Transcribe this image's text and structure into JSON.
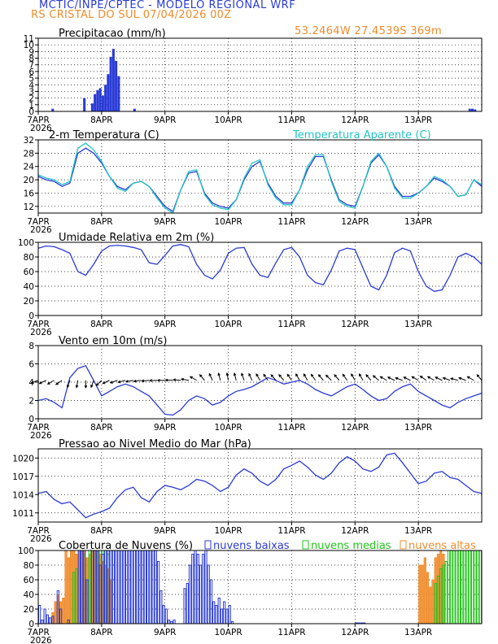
{
  "header": {
    "title": "MCTIC/INPE/CPTEC - MODELO REGIONAL WRF",
    "location": "RS CRISTAL DO SUL   07/04/2026 00Z",
    "coords": "53.2464W 27.4539S 369m"
  },
  "colors": {
    "blue": "#2a3bd6",
    "cyan": "#22c4c4",
    "green": "#22c41a",
    "orange": "#f08c2c",
    "black": "#000000"
  },
  "x_axis": {
    "labels": [
      "7APR",
      "8APR",
      "9APR",
      "10APR",
      "11APR",
      "12APR",
      "13APR"
    ],
    "year_label": "2026",
    "hours_total": 168
  },
  "chart_data": [
    {
      "type": "bar",
      "title": "Precipitacao (mm/h)",
      "ylim": [
        0,
        11
      ],
      "yticks": [
        "0",
        "1",
        "2",
        "3",
        "4",
        "5",
        "6",
        "7",
        "8",
        "9",
        "10",
        "11"
      ],
      "unit_hours": [
        5,
        17,
        20,
        21,
        22,
        23,
        24,
        25,
        26,
        27,
        28,
        29,
        30,
        36,
        163,
        164,
        165
      ],
      "values": [
        0.4,
        2.0,
        1.2,
        2.6,
        3.2,
        3.5,
        2.4,
        4.0,
        5.6,
        8.2,
        9.4,
        7.6,
        5.3,
        0.4,
        0.4,
        0.4,
        0.3
      ]
    },
    {
      "type": "line",
      "title": "2-m Temperatura (C)",
      "ylim": [
        10,
        32
      ],
      "yticks": [
        "12",
        "16",
        "20",
        "24",
        "28",
        "32"
      ],
      "series": [
        {
          "name": "",
          "x": [
            0,
            3,
            6,
            9,
            12,
            15,
            18,
            21,
            24,
            27,
            30,
            33,
            36,
            39,
            42,
            45,
            48,
            51,
            54,
            57,
            60,
            63,
            66,
            69,
            72,
            75,
            78,
            81,
            84,
            87,
            90,
            93,
            96,
            99,
            102,
            105,
            108,
            111,
            114,
            117,
            120,
            123,
            126,
            129,
            132,
            135,
            138,
            141,
            144,
            147,
            150,
            153,
            156,
            159,
            162,
            165,
            168
          ],
          "values": [
            21,
            20,
            19.5,
            18,
            19,
            28,
            29.5,
            28,
            25,
            21,
            18,
            17,
            19,
            19.5,
            18,
            15,
            12,
            10.5,
            17,
            22,
            22.5,
            16,
            13,
            12,
            11.5,
            14,
            20,
            24,
            25.5,
            19,
            15,
            13,
            13,
            17,
            23,
            27,
            27,
            20,
            14,
            12.5,
            12,
            18,
            25,
            27.5,
            24,
            18,
            15,
            15,
            16,
            18,
            20.5,
            19.5,
            18,
            15,
            15.5,
            20,
            18
          ]
        },
        {
          "name": "Temperatura Aparente (C)",
          "x": [
            0,
            3,
            6,
            9,
            12,
            15,
            18,
            21,
            24,
            27,
            30,
            33,
            36,
            39,
            42,
            45,
            48,
            51,
            54,
            57,
            60,
            63,
            66,
            69,
            72,
            75,
            78,
            81,
            84,
            87,
            90,
            93,
            96,
            99,
            102,
            105,
            108,
            111,
            114,
            117,
            120,
            123,
            126,
            129,
            132,
            135,
            138,
            141,
            144,
            147,
            150,
            153,
            156,
            159,
            162,
            165,
            168
          ],
          "values": [
            21.5,
            20.5,
            20,
            18.5,
            19.5,
            29.5,
            31,
            29,
            25.5,
            21,
            17.5,
            16.5,
            19,
            19.5,
            18,
            14.5,
            11.5,
            10,
            17,
            22.5,
            23,
            15.5,
            12.5,
            11.5,
            11,
            14,
            20.5,
            25,
            26,
            18.5,
            14.5,
            12.5,
            12.5,
            17,
            24,
            27.5,
            27.5,
            19.5,
            13.5,
            12,
            11.5,
            18,
            25.5,
            28,
            24,
            17.5,
            14.5,
            14.5,
            16,
            18,
            21,
            20,
            18,
            15,
            15.5,
            20,
            18.5
          ]
        }
      ]
    },
    {
      "type": "line",
      "title": "Umidade Relativa em 2m (%)",
      "ylim": [
        0,
        100
      ],
      "yticks": [
        "0",
        "20",
        "40",
        "60",
        "80",
        "100"
      ],
      "series": [
        {
          "name": "",
          "x": [
            0,
            3,
            6,
            9,
            12,
            15,
            18,
            21,
            24,
            27,
            30,
            33,
            36,
            39,
            42,
            45,
            48,
            51,
            54,
            57,
            60,
            63,
            66,
            69,
            72,
            75,
            78,
            81,
            84,
            87,
            90,
            93,
            96,
            99,
            102,
            105,
            108,
            111,
            114,
            117,
            120,
            123,
            126,
            129,
            132,
            135,
            138,
            141,
            144,
            147,
            150,
            153,
            156,
            159,
            162,
            165,
            168
          ],
          "values": [
            92,
            95,
            94,
            90,
            85,
            60,
            55,
            70,
            88,
            95,
            96,
            95,
            93,
            90,
            72,
            70,
            82,
            95,
            97,
            94,
            70,
            55,
            50,
            62,
            85,
            92,
            93,
            70,
            55,
            52,
            72,
            90,
            93,
            80,
            55,
            45,
            42,
            62,
            88,
            92,
            90,
            65,
            40,
            35,
            55,
            86,
            92,
            88,
            60,
            40,
            33,
            35,
            55,
            80,
            85,
            80,
            70
          ]
        }
      ]
    },
    {
      "type": "line",
      "title": "Vento em 10m (m/s)",
      "ylim": [
        0,
        8
      ],
      "yticks": [
        "0",
        "2",
        "4",
        "6",
        "8"
      ],
      "series": [
        {
          "name": "",
          "x": [
            0,
            3,
            6,
            9,
            12,
            15,
            18,
            21,
            24,
            27,
            30,
            33,
            36,
            39,
            42,
            45,
            48,
            51,
            54,
            57,
            60,
            63,
            66,
            69,
            72,
            75,
            78,
            81,
            84,
            87,
            90,
            93,
            96,
            99,
            102,
            105,
            108,
            111,
            114,
            117,
            120,
            123,
            126,
            129,
            132,
            135,
            138,
            141,
            144,
            147,
            150,
            153,
            156,
            159,
            162,
            165,
            168
          ],
          "values": [
            2,
            2.2,
            1.8,
            1.2,
            4.5,
            5.5,
            5.8,
            4.2,
            2.5,
            3,
            3.5,
            3.8,
            3.5,
            3,
            2.5,
            1.5,
            0.5,
            0.4,
            1,
            2,
            2.5,
            2.2,
            1.5,
            1.8,
            2.5,
            3,
            3.2,
            3.5,
            4,
            4.5,
            4.2,
            3.8,
            4,
            4.2,
            3.8,
            3.2,
            2.8,
            2.5,
            3,
            3.5,
            3.8,
            3.2,
            2.5,
            2,
            2.2,
            3,
            3.5,
            3.8,
            3,
            2.5,
            2,
            1.5,
            1.2,
            1.8,
            2.2,
            2.5,
            2.8
          ]
        }
      ],
      "wind_vectors": {
        "unit_hours": [
          0,
          3,
          6,
          9,
          12,
          15,
          18,
          21,
          24,
          27,
          30,
          33,
          36,
          39,
          42,
          45,
          48,
          51,
          54,
          57,
          60,
          63,
          66,
          69,
          72,
          75,
          78,
          81,
          84,
          87,
          90,
          93,
          96,
          99,
          102,
          105,
          108,
          111,
          114,
          117,
          120,
          123,
          126,
          129,
          132,
          135,
          138,
          141,
          144,
          147,
          150,
          153,
          156,
          159,
          162,
          165,
          168
        ],
        "direction_deg": [
          250,
          245,
          240,
          235,
          200,
          190,
          180,
          200,
          225,
          245,
          250,
          255,
          260,
          262,
          265,
          268,
          270,
          272,
          275,
          280,
          300,
          320,
          335,
          345,
          350,
          345,
          340,
          335,
          330,
          325,
          320,
          320,
          325,
          330,
          330,
          325,
          320,
          315,
          320,
          325,
          330,
          330,
          320,
          310,
          300,
          295,
          290,
          295,
          300,
          305,
          300,
          295,
          290,
          285,
          290,
          300,
          320
        ]
      }
    },
    {
      "type": "line",
      "title": "Pressao ao Nivel Medio do Mar (hPa)",
      "ylim": [
        1009.5,
        1021.5
      ],
      "yticks": [
        "1011",
        "1014",
        "1017",
        "1020"
      ],
      "series": [
        {
          "name": "",
          "x": [
            0,
            3,
            6,
            9,
            12,
            15,
            18,
            21,
            24,
            27,
            30,
            33,
            36,
            39,
            42,
            45,
            48,
            51,
            54,
            57,
            60,
            63,
            66,
            69,
            72,
            75,
            78,
            81,
            84,
            87,
            90,
            93,
            96,
            99,
            102,
            105,
            108,
            111,
            114,
            117,
            120,
            123,
            126,
            129,
            132,
            135,
            138,
            141,
            144,
            147,
            150,
            153,
            156,
            159,
            162,
            165,
            168
          ],
          "values": [
            1014.2,
            1014.5,
            1013.2,
            1012.5,
            1012.8,
            1011.5,
            1010.2,
            1010.8,
            1011.2,
            1011.8,
            1013.5,
            1014.8,
            1015.2,
            1013.5,
            1012.8,
            1014.5,
            1015.5,
            1015.2,
            1014.8,
            1015.5,
            1016.5,
            1016.2,
            1015.5,
            1014.5,
            1015.2,
            1017.2,
            1018.2,
            1017.5,
            1016.2,
            1015.5,
            1016.5,
            1018.2,
            1018.8,
            1019.5,
            1018.5,
            1017.2,
            1016.5,
            1017.5,
            1019.2,
            1020.2,
            1019.5,
            1018.2,
            1017.8,
            1018.5,
            1020.5,
            1020.8,
            1019.2,
            1017.5,
            1015.8,
            1016.2,
            1017.5,
            1017.8,
            1016.8,
            1016.5,
            1015.5,
            1014.5,
            1014.2
          ]
        }
      ]
    },
    {
      "type": "bar",
      "title": "Cobertura de Nuvens (%)",
      "ylim": [
        0,
        100
      ],
      "yticks": [
        "0",
        "20",
        "40",
        "60",
        "80",
        "100"
      ],
      "legend": [
        "nuvens baixas",
        "nuvens medias",
        "nuvens altas"
      ],
      "series": [
        {
          "name": "nuvens baixas",
          "unit_hours": [
            0,
            1,
            2,
            3,
            4,
            5,
            7,
            8,
            11,
            15,
            16,
            17,
            18,
            20,
            21,
            22,
            23,
            24,
            25,
            26,
            27,
            28,
            29,
            30,
            31,
            32,
            33,
            34,
            35,
            36,
            37,
            38,
            39,
            40,
            41,
            42,
            43,
            44,
            45,
            46,
            47,
            48,
            49,
            50,
            51,
            55,
            56,
            57,
            58,
            59,
            60,
            61,
            62,
            63,
            64,
            65,
            66,
            67,
            68,
            69,
            70,
            71,
            72,
            73,
            120,
            121,
            122,
            123
          ],
          "values": [
            25,
            5,
            20,
            12,
            8,
            10,
            45,
            20,
            5,
            100,
            100,
            100,
            60,
            100,
            100,
            100,
            80,
            95,
            100,
            100,
            100,
            100,
            100,
            100,
            100,
            100,
            100,
            100,
            100,
            100,
            100,
            100,
            100,
            100,
            100,
            100,
            100,
            100,
            85,
            45,
            25,
            20,
            5,
            3,
            5,
            48,
            55,
            80,
            95,
            100,
            95,
            80,
            95,
            100,
            80,
            60,
            30,
            25,
            35,
            20,
            30,
            20,
            25,
            3,
            1,
            1,
            1,
            1
          ]
        },
        {
          "name": "nuvens medias",
          "unit_hours": [
            13,
            14,
            17,
            19,
            20,
            21,
            22,
            23,
            24,
            25,
            26,
            150,
            151,
            152,
            153,
            154,
            155,
            156,
            157,
            158,
            159,
            160,
            161,
            162,
            163,
            164,
            165,
            166,
            167
          ],
          "values": [
            70,
            75,
            95,
            100,
            100,
            100,
            100,
            100,
            100,
            100,
            95,
            55,
            65,
            75,
            80,
            85,
            100,
            100,
            100,
            100,
            100,
            100,
            100,
            100,
            100,
            100,
            100,
            100,
            100
          ]
        },
        {
          "name": "nuvens altas",
          "unit_hours": [
            5,
            6,
            7,
            8,
            9,
            10,
            11,
            12,
            13,
            14,
            15,
            16,
            17,
            18,
            19,
            20,
            21,
            22,
            23,
            24,
            25,
            26,
            27,
            144,
            145,
            146,
            147,
            148,
            149,
            150,
            151,
            152,
            153
          ],
          "values": [
            15,
            30,
            40,
            30,
            35,
            100,
            90,
            100,
            100,
            95,
            100,
            100,
            100,
            90,
            95,
            100,
            100,
            100,
            95,
            85,
            80,
            75,
            60,
            80,
            80,
            90,
            70,
            50,
            60,
            90,
            95,
            100,
            95
          ]
        }
      ]
    }
  ]
}
